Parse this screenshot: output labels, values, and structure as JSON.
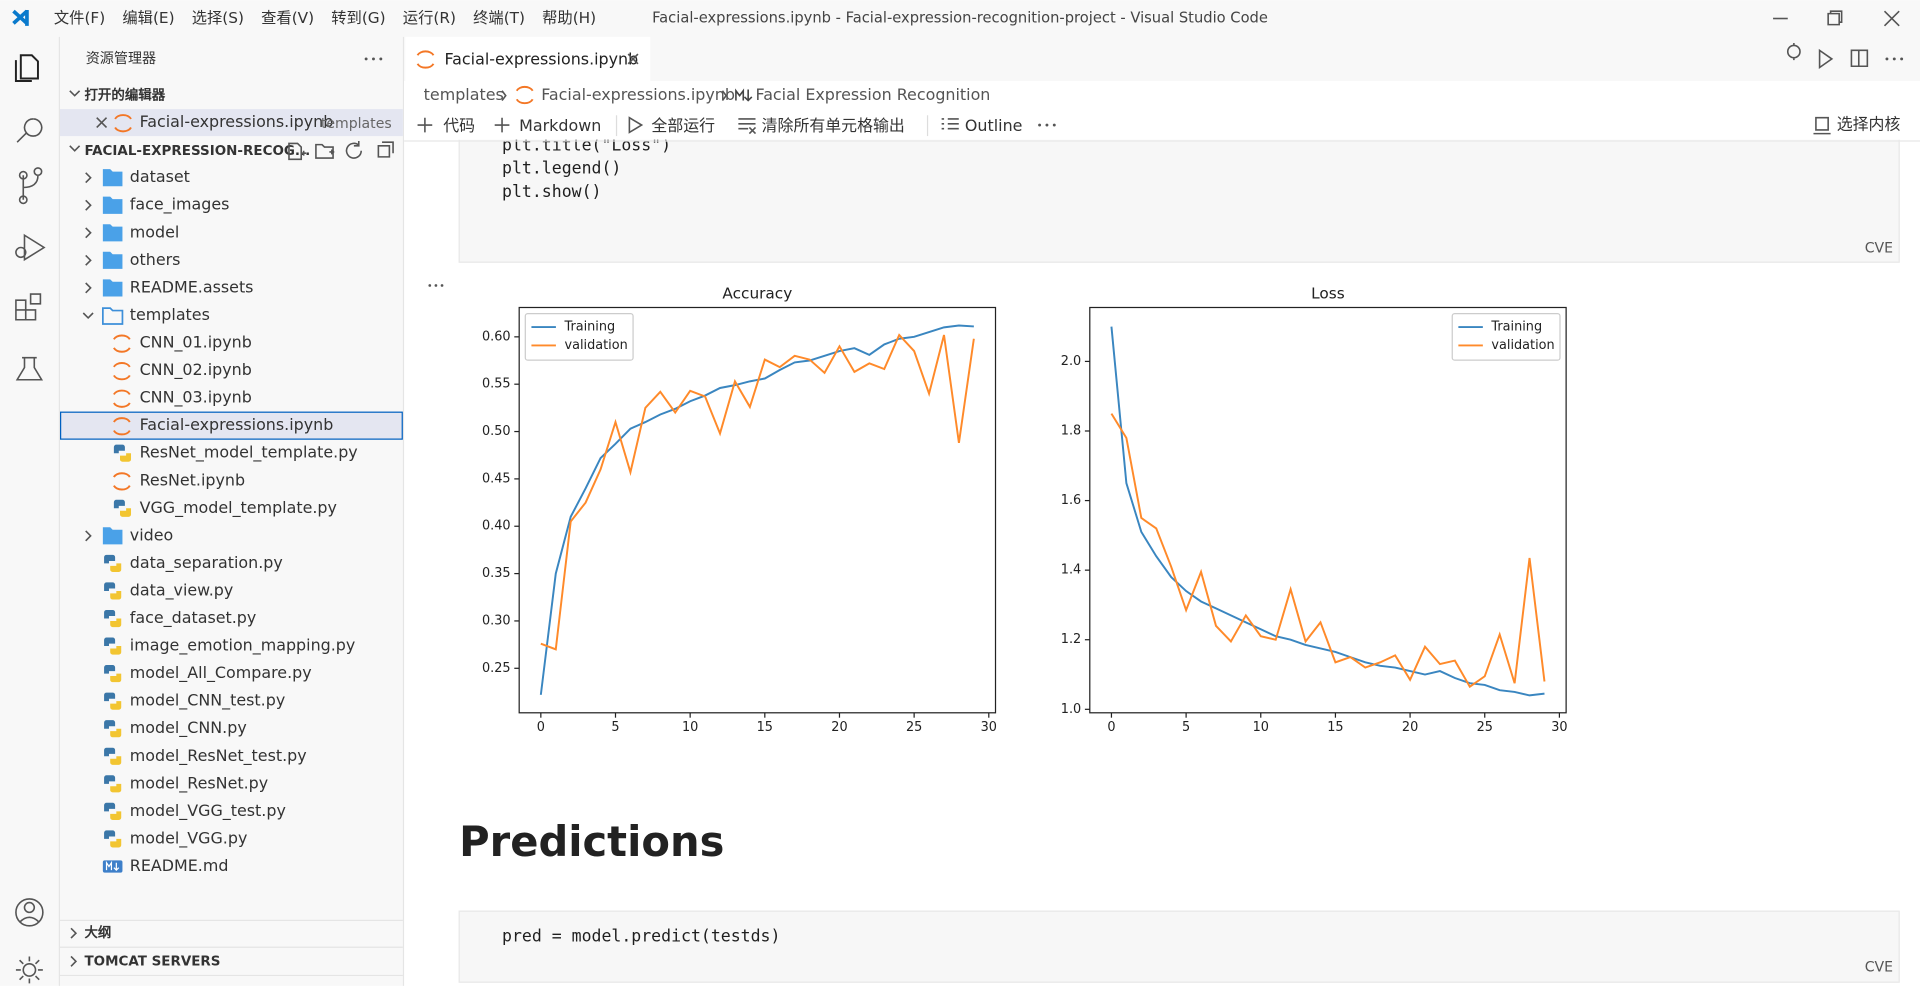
{
  "window": {
    "menu": [
      "文件(F)",
      "编辑(E)",
      "选择(S)",
      "查看(V)",
      "转到(G)",
      "运行(R)",
      "终端(T)",
      "帮助(H)"
    ],
    "title": "Facial-expressions.ipynb - Facial-expression-recognition-project - Visual Studio Code"
  },
  "sidebar": {
    "title": "资源管理器",
    "open_editors": {
      "header": "打开的编辑器",
      "files": [
        {
          "name": "Facial-expressions.ipynb",
          "folder": "templates"
        }
      ]
    },
    "project": {
      "name": "FACIAL-EXPRESSION-RECOG...",
      "tree": [
        {
          "name": "dataset",
          "folder": true
        },
        {
          "name": "face_images",
          "folder": true
        },
        {
          "name": "model",
          "folder": true
        },
        {
          "name": "others",
          "folder": true
        },
        {
          "name": "README.assets",
          "folder": true
        },
        {
          "name": "templates",
          "folder": true,
          "expanded": true,
          "children": [
            {
              "name": "CNN_01.ipynb"
            },
            {
              "name": "CNN_02.ipynb"
            },
            {
              "name": "CNN_03.ipynb"
            },
            {
              "name": "Facial-expressions.ipynb",
              "selected": true
            },
            {
              "name": "ResNet_model_template.py"
            },
            {
              "name": "ResNet.ipynb"
            },
            {
              "name": "VGG_model_template.py"
            }
          ]
        },
        {
          "name": "video",
          "folder": true
        },
        {
          "name": "data_separation.py"
        },
        {
          "name": "data_view.py"
        },
        {
          "name": "face_dataset.py"
        },
        {
          "name": "image_emotion_mapping.py"
        },
        {
          "name": "model_All_Compare.py"
        },
        {
          "name": "model_CNN_test.py"
        },
        {
          "name": "model_CNN.py"
        },
        {
          "name": "model_ResNet_test.py"
        },
        {
          "name": "model_ResNet.py"
        },
        {
          "name": "model_VGG_test.py"
        },
        {
          "name": "model_VGG.py"
        },
        {
          "name": "README.md"
        }
      ]
    },
    "sections": [
      "大纲",
      "TOMCAT SERVERS"
    ]
  },
  "editor": {
    "tab": "Facial-expressions.ipynb",
    "breadcrumb": [
      "templates",
      "Facial-expressions.ipynb",
      "Facial Expression Recognition"
    ],
    "toolbar": [
      "代码",
      "Markdown",
      "全部运行",
      "清除所有单元格输出",
      "Outline"
    ],
    "kernel": "选择内核",
    "cells": [
      {
        "lines": [
          "plt.title(\"Loss\")",
          "plt.legend()",
          "plt.show()"
        ],
        "language": "CVE"
      },
      {
        "heading": "Predictions"
      },
      {
        "lines": [
          "pred = model.predict(testds)"
        ],
        "language": "CVE"
      }
    ]
  },
  "charts": [
    {
      "type": "line",
      "title": "Accuracy",
      "x": [
        0,
        1,
        2,
        3,
        4,
        5,
        6,
        7,
        8,
        9,
        10,
        11,
        12,
        13,
        14,
        15,
        16,
        17,
        18,
        19,
        20,
        21,
        22,
        23,
        24,
        25,
        26,
        27,
        28,
        29
      ],
      "series": [
        {
          "name": "Training",
          "color": "#3a86c0",
          "values": [
            0.222,
            0.35,
            0.41,
            0.44,
            0.472,
            0.487,
            0.503,
            0.51,
            0.518,
            0.524,
            0.532,
            0.538,
            0.546,
            0.549,
            0.553,
            0.556,
            0.565,
            0.573,
            0.575,
            0.58,
            0.585,
            0.588,
            0.581,
            0.592,
            0.598,
            0.6,
            0.605,
            0.61,
            0.612,
            0.611
          ]
        },
        {
          "name": "validation",
          "color": "#ff8a2a",
          "values": [
            0.276,
            0.27,
            0.405,
            0.425,
            0.46,
            0.51,
            0.457,
            0.525,
            0.542,
            0.52,
            0.543,
            0.537,
            0.498,
            0.553,
            0.526,
            0.576,
            0.568,
            0.58,
            0.576,
            0.562,
            0.59,
            0.563,
            0.572,
            0.566,
            0.602,
            0.585,
            0.54,
            0.602,
            0.488,
            0.598
          ]
        }
      ],
      "xlim": [
        -1.45,
        30.45
      ],
      "xticks": [
        0,
        5,
        10,
        15,
        20,
        25,
        30
      ],
      "ylim": [
        0.203,
        0.631
      ],
      "yticks": [
        0.25,
        {
          "value": 0.3,
          "label": "0.30"
        },
        0.35,
        {
          "value": 0.4,
          "label": "0.40"
        },
        0.45,
        {
          "value": 0.5,
          "label": "0.50"
        },
        0.55,
        {
          "value": 0.6,
          "label": "0.60"
        }
      ],
      "legend": "upper left"
    },
    {
      "type": "line",
      "title": "Loss",
      "x": [
        0,
        1,
        2,
        3,
        4,
        5,
        6,
        7,
        8,
        9,
        10,
        11,
        12,
        13,
        14,
        15,
        16,
        17,
        18,
        19,
        20,
        21,
        22,
        23,
        24,
        25,
        26,
        27,
        28,
        29
      ],
      "series": [
        {
          "name": "Training",
          "color": "#3a86c0",
          "values": [
            2.1,
            1.65,
            1.51,
            1.44,
            1.38,
            1.34,
            1.31,
            1.29,
            1.27,
            1.25,
            1.23,
            1.21,
            1.2,
            1.185,
            1.175,
            1.165,
            1.15,
            1.135,
            1.125,
            1.12,
            1.11,
            1.1,
            1.11,
            1.09,
            1.075,
            1.07,
            1.055,
            1.05,
            1.04,
            1.045
          ]
        },
        {
          "name": "validation",
          "color": "#ff8a2a",
          "values": [
            1.85,
            1.78,
            1.55,
            1.52,
            1.41,
            1.285,
            1.395,
            1.24,
            1.195,
            1.27,
            1.21,
            1.2,
            1.345,
            1.195,
            1.25,
            1.135,
            1.15,
            1.12,
            1.135,
            1.155,
            1.085,
            1.18,
            1.13,
            1.14,
            1.065,
            1.095,
            1.215,
            1.075,
            1.435,
            1.08
          ]
        }
      ],
      "xlim": [
        -1.45,
        30.45
      ],
      "xticks": [
        0,
        5,
        10,
        15,
        20,
        25,
        30
      ],
      "ylim": [
        0.99,
        2.155
      ],
      "yticks": [
        {
          "value": 1,
          "label": "1.0"
        },
        1.2,
        1.4,
        1.6,
        1.8,
        {
          "value": 2,
          "label": "2.0"
        }
      ],
      "legend": "upper right"
    }
  ]
}
